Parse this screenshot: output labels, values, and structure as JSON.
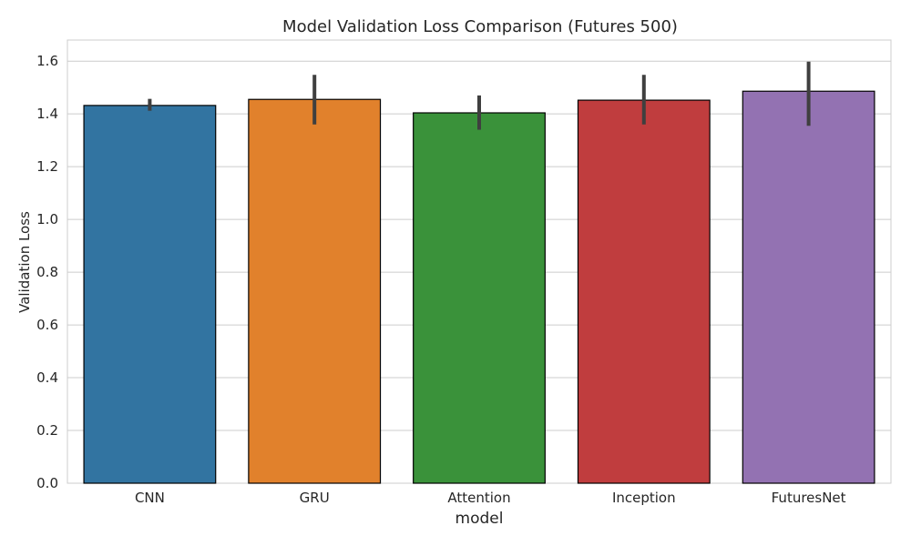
{
  "chart_data": {
    "type": "bar",
    "title": "Model Validation Loss Comparison (Futures 500)",
    "xlabel": "model",
    "ylabel": "Validation Loss",
    "ylim": [
      0,
      1.68
    ],
    "yticks": [
      0.0,
      0.2,
      0.4,
      0.6,
      0.8,
      1.0,
      1.2,
      1.4,
      1.6
    ],
    "ytick_labels": [
      "0.0",
      "0.2",
      "0.4",
      "0.6",
      "0.8",
      "1.0",
      "1.2",
      "1.4",
      "1.6"
    ],
    "grid": true,
    "categories": [
      "CNN",
      "GRU",
      "Attention",
      "Inception",
      "FuturesNet"
    ],
    "values": [
      1.432,
      1.455,
      1.404,
      1.452,
      1.486
    ],
    "error_bars": [
      {
        "low": 1.412,
        "high": 1.457
      },
      {
        "low": 1.36,
        "high": 1.548
      },
      {
        "low": 1.34,
        "high": 1.47
      },
      {
        "low": 1.36,
        "high": 1.548
      },
      {
        "low": 1.355,
        "high": 1.598
      }
    ],
    "colors": [
      "#3274a1",
      "#e1812c",
      "#3a923a",
      "#c03d3e",
      "#9372b2"
    ]
  }
}
